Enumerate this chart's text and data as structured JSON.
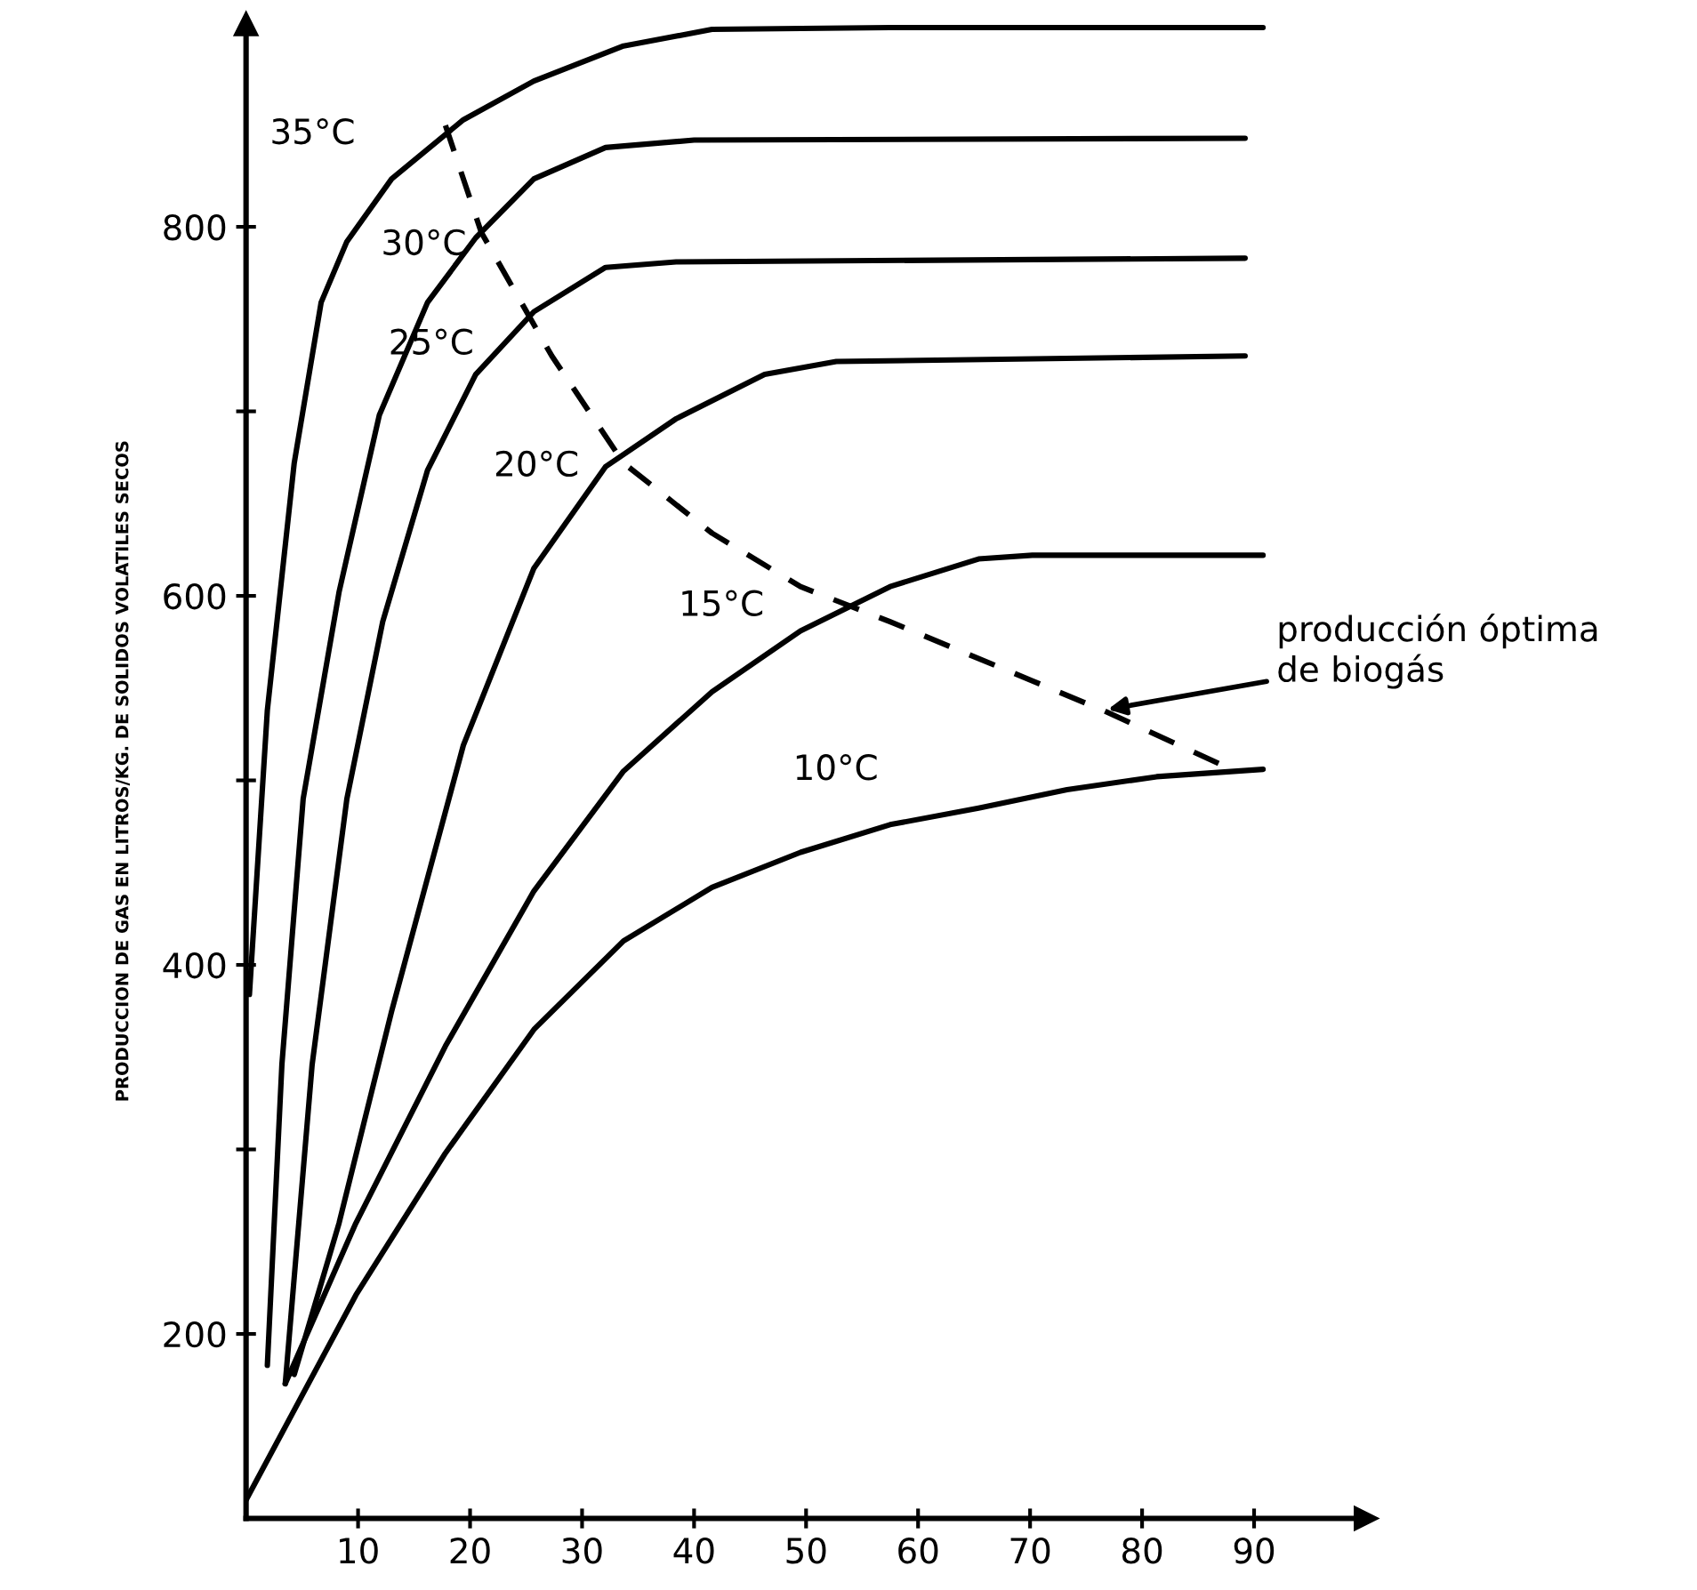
{
  "chart_data": {
    "type": "line",
    "ylabel": "PRODUCCION DE GAS EN LITROS/KG. DE SOLIDOS VOLATILES SECOS",
    "xlim": [
      0,
      100
    ],
    "ylim": [
      100,
      910
    ],
    "xticks": [
      10,
      20,
      30,
      40,
      50,
      60,
      70,
      80,
      90
    ],
    "yticks": [
      200,
      {
        "value": 300,
        "label": null
      },
      400,
      {
        "value": 500,
        "label": null
      },
      600,
      {
        "value": 700,
        "label": null
      },
      800
    ],
    "grid": false,
    "legend": false,
    "marker": "none",
    "series": [
      {
        "name": "35°C",
        "color": "#000000",
        "line_style": "solid",
        "x": [
          0.3,
          1.9,
          4.3,
          6.7,
          9,
          13,
          19.4,
          25.7,
          33.7,
          41.6,
          57.5,
          90.8
        ],
        "values": [
          384,
          538,
          672,
          759,
          792,
          826,
          858,
          879,
          898,
          907,
          908,
          908
        ]
      },
      {
        "name": "30°C",
        "color": "#000000",
        "line_style": "solid",
        "x": [
          1.9,
          3.2,
          5.1,
          8.3,
          11.9,
          16.2,
          20.5,
          25.7,
          32.1,
          40,
          89.2
        ],
        "values": [
          183,
          346,
          490,
          602,
          698,
          759,
          794,
          826,
          843,
          847,
          848
        ]
      },
      {
        "name": "25°C",
        "color": "#000000",
        "line_style": "solid",
        "x": [
          3.5,
          5.9,
          9,
          12.2,
          16.2,
          20.5,
          25.7,
          32.1,
          38.4,
          89.2
        ],
        "values": [
          173,
          346,
          490,
          586,
          668,
          720,
          754,
          778,
          781,
          783
        ]
      },
      {
        "name": "20°C",
        "color": "#000000",
        "line_style": "solid",
        "x": [
          4.3,
          8.3,
          13,
          19.4,
          25.7,
          32.1,
          38.4,
          46.3,
          52.7,
          89.2
        ],
        "values": [
          178,
          260,
          375,
          519,
          615,
          670,
          696,
          720,
          727,
          730
        ]
      },
      {
        "name": "15°C",
        "color": "#000000",
        "line_style": "solid",
        "x": [
          3.5,
          9.8,
          17.8,
          25.7,
          33.7,
          41.6,
          49.5,
          57.5,
          65.4,
          70.2,
          90.8
        ],
        "values": [
          173,
          260,
          356,
          440,
          505,
          548,
          581,
          605,
          620,
          622,
          622
        ]
      },
      {
        "name": "10°C",
        "color": "#000000",
        "line_style": "solid",
        "x": [
          0,
          9.8,
          17.8,
          25.7,
          33.7,
          41.6,
          49.5,
          57.5,
          65.4,
          73.3,
          81.3,
          90.8
        ],
        "values": [
          110,
          221,
          298,
          365,
          413,
          442,
          461,
          476,
          485,
          495,
          502,
          506
        ]
      },
      {
        "color": "#000000",
        "line_style": "dashed",
        "x": [
          17.8,
          21,
          27.3,
          33.7,
          41.6,
          49.5,
          57.5,
          67,
          76.5,
          87.6
        ],
        "values": [
          855,
          797,
          730,
          672,
          634,
          605,
          586,
          562,
          538,
          507
        ]
      }
    ],
    "annotations": [
      {
        "text": "producción óptima\nde biogás",
        "x": 76.5,
        "y": 538
      }
    ]
  }
}
